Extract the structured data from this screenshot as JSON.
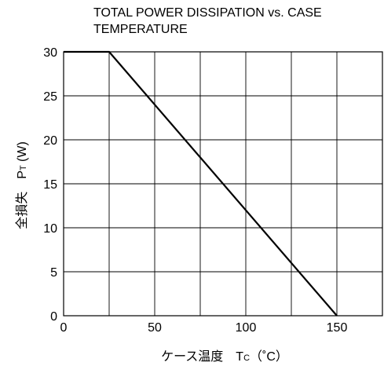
{
  "chart_data": {
    "type": "line",
    "title": "TOTAL POWER DISSIPATION vs. CASE\nTEMPERATURE",
    "ylabel": {
      "main": "全損失　P",
      "sub": "T",
      "unit": " (W)"
    },
    "xlabel": {
      "main": "ケース温度　T",
      "sub": "C",
      "unit": "（˚C）"
    },
    "xlim": [
      0,
      175
    ],
    "ylim": [
      0,
      30
    ],
    "xticks": [
      0,
      50,
      100,
      150
    ],
    "yticks": [
      0,
      5,
      10,
      15,
      20,
      25,
      30
    ],
    "grid": true,
    "series": [
      {
        "x": [
          0,
          25,
          150
        ],
        "y": [
          30,
          30,
          0
        ]
      }
    ]
  }
}
